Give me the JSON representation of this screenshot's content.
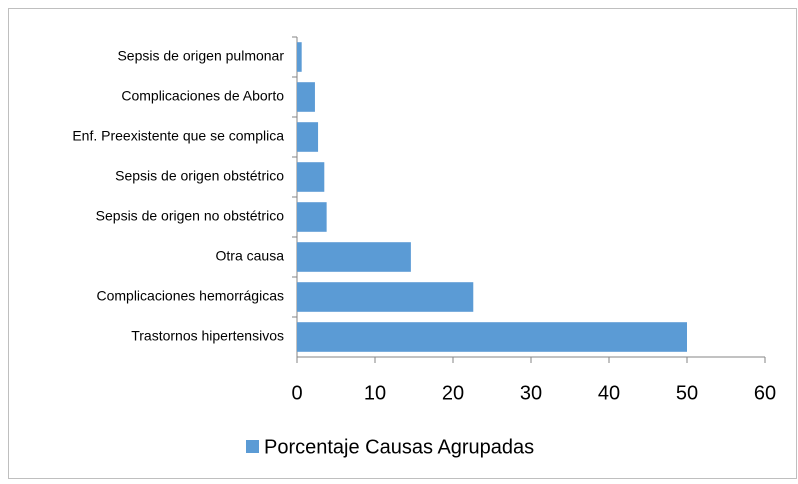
{
  "chart_data": {
    "type": "barh",
    "categories": [
      "Sepsis de origen pulmonar",
      "Complicaciones de Aborto",
      "Enf. Preexistente que se complica",
      "Sepsis de origen obstétrico",
      "Sepsis de origen no obstétrico",
      "Otra causa",
      "Complicaciones hemorrágicas",
      "Trastornos hipertensivos"
    ],
    "series": [
      {
        "name": "Porcentaje Causas Agrupadas",
        "color": "#5b9bd5",
        "values": [
          0.6,
          2.3,
          2.7,
          3.5,
          3.8,
          14.6,
          22.6,
          50
        ]
      }
    ],
    "xlim": [
      0,
      60
    ],
    "xticks": [
      0,
      10,
      20,
      30,
      40,
      50,
      60
    ],
    "grid": false,
    "legend": "bottom"
  }
}
